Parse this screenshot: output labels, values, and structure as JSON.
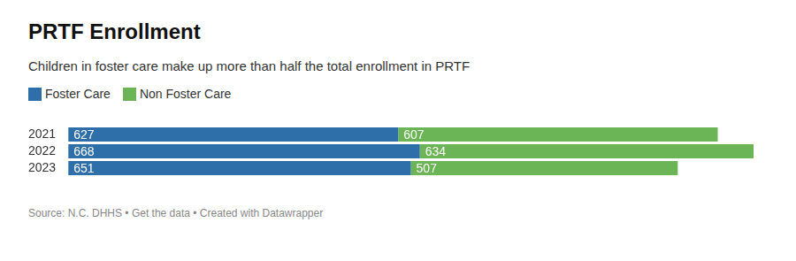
{
  "chart_data": {
    "type": "bar",
    "orientation": "horizontal",
    "stacked": true,
    "title": "PRTF Enrollment",
    "subtitle": "Children in foster care make up more than half the total enrollment in PRTF",
    "categories": [
      "2021",
      "2022",
      "2023"
    ],
    "series": [
      {
        "name": "Foster Care",
        "color": "#2f6fa9",
        "values": [
          627,
          668,
          651
        ]
      },
      {
        "name": "Non Foster Care",
        "color": "#6bb556",
        "values": [
          607,
          634,
          507
        ]
      }
    ],
    "xlim": [
      0,
      1302
    ],
    "grid": false,
    "legend": "top-left",
    "data_labels": true,
    "tick_labels": "y",
    "source": "Source: N.C. DHHS • Get the data • Created with Datawrapper"
  }
}
